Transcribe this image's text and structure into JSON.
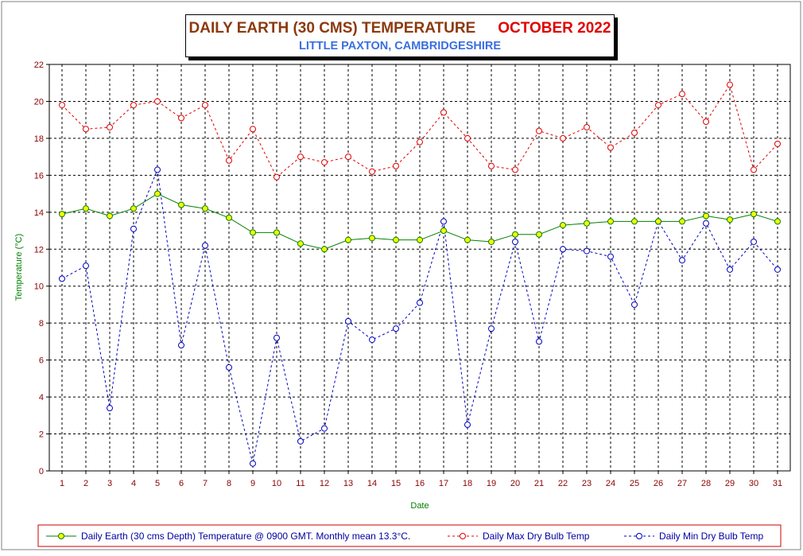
{
  "chart_data": {
    "type": "line",
    "title": "DAILY EARTH (30 CMS) TEMPERATURE",
    "title_month": "OCTOBER 2022",
    "subtitle": "LITTLE PAXTON, CAMBRIDGESHIRE",
    "xlabel": "Date",
    "ylabel": "Temperature (°C)",
    "ylim": [
      0,
      22
    ],
    "yticks": [
      0,
      2,
      4,
      6,
      8,
      10,
      12,
      14,
      16,
      18,
      20,
      22
    ],
    "xlim": [
      1,
      31
    ],
    "x": [
      1,
      2,
      3,
      4,
      5,
      6,
      7,
      8,
      9,
      10,
      11,
      12,
      13,
      14,
      15,
      16,
      17,
      18,
      19,
      20,
      21,
      22,
      23,
      24,
      25,
      26,
      27,
      28,
      29,
      30,
      31
    ],
    "grid": true,
    "legend_position": "bottom",
    "series": [
      {
        "name": "Daily Earth (30 cms Depth) Temperature @ 0900 GMT. Monthly mean 13.3°C.",
        "color": "#008000",
        "marker_fill": "#FFFF00",
        "style": "solid",
        "values": [
          13.9,
          14.2,
          13.8,
          14.2,
          15.0,
          14.4,
          14.2,
          13.7,
          12.9,
          12.9,
          12.3,
          12.0,
          12.5,
          12.6,
          12.5,
          12.5,
          13.0,
          12.5,
          12.4,
          12.8,
          12.8,
          13.3,
          13.4,
          13.5,
          13.5,
          13.5,
          13.5,
          13.8,
          13.6,
          13.9,
          13.5
        ]
      },
      {
        "name": "Daily Max Dry Bulb Temp",
        "color": "#E00000",
        "style": "dashed",
        "values": [
          19.8,
          18.5,
          18.6,
          19.8,
          20.0,
          19.1,
          19.8,
          16.8,
          18.5,
          15.9,
          17.0,
          16.7,
          17.0,
          16.2,
          16.5,
          17.8,
          19.4,
          18.0,
          16.5,
          16.3,
          18.4,
          18.0,
          18.6,
          17.5,
          18.3,
          19.8,
          20.4,
          18.9,
          20.9,
          16.3,
          17.7
        ]
      },
      {
        "name": "Daily Min Dry Bulb Temp",
        "color": "#0000C0",
        "style": "dashed",
        "values": [
          10.4,
          11.1,
          3.4,
          13.1,
          16.3,
          6.8,
          12.2,
          5.6,
          0.4,
          7.2,
          1.6,
          2.3,
          8.1,
          7.1,
          7.7,
          9.1,
          13.5,
          2.5,
          7.7,
          12.4,
          7.0,
          12.0,
          11.9,
          11.6,
          9.0,
          13.5,
          11.4,
          13.4,
          10.9,
          12.4,
          10.9
        ]
      }
    ]
  }
}
